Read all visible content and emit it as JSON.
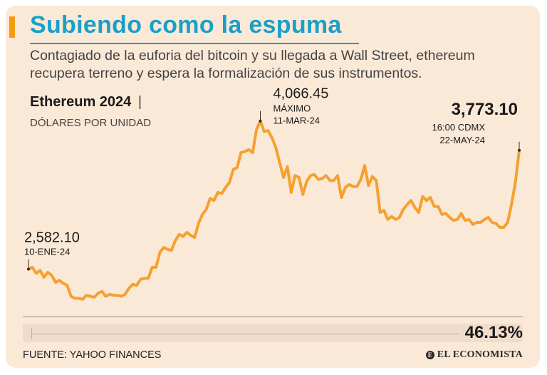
{
  "header": {
    "title": "Subiendo como la espuma",
    "subtitle": "Contagiado de la euforia del bitcoin y su llegada a Wall Street, ethereum recupera terreno y espera la formalización de sus instrumentos."
  },
  "series_label": {
    "name": "Ethereum 2024",
    "separator": "|",
    "units": "DÓLARES POR UNIDAD"
  },
  "annotations": {
    "start": {
      "value": "2,582.10",
      "date": "10-ENE-24"
    },
    "max": {
      "value": "4,066.45",
      "label": "MÁXIMO",
      "date": "11-MAR-24"
    },
    "last": {
      "value": "3,773.10",
      "time": "16:00 CDMX",
      "date": "22-MAY-24"
    }
  },
  "change": {
    "value": "46.13%"
  },
  "footer": {
    "source": "FUENTE: YAHOO FINANCES",
    "brand": "EL ECONOMISTA",
    "brand_icon": "E"
  },
  "colors": {
    "line": "#f5a031",
    "title": "#1aa0c8",
    "background": "#fbe9d7",
    "accent": "#f39c12"
  },
  "chart_data": {
    "type": "line",
    "title": "Ethereum 2024",
    "ylabel": "DÓLARES POR UNIDAD",
    "xlabel": "",
    "ylim": [
      2150,
      4150
    ],
    "x_range": [
      "10-ENE-24",
      "22-MAY-24"
    ],
    "grid": false,
    "series": [
      {
        "name": "Ethereum",
        "values": [
          2582.1,
          2600,
          2540,
          2570,
          2500,
          2550,
          2520,
          2450,
          2470,
          2440,
          2420,
          2310,
          2290,
          2290,
          2280,
          2320,
          2310,
          2300,
          2340,
          2360,
          2310,
          2330,
          2320,
          2320,
          2310,
          2330,
          2390,
          2430,
          2420,
          2480,
          2490,
          2490,
          2600,
          2600,
          2750,
          2800,
          2780,
          2770,
          2870,
          2930,
          2910,
          2950,
          2920,
          2900,
          3040,
          3130,
          3180,
          3290,
          3270,
          3350,
          3340,
          3400,
          3450,
          3580,
          3600,
          3750,
          3760,
          3780,
          3750,
          3980,
          4066.45,
          3960,
          3970,
          3900,
          3800,
          3650,
          3500,
          3610,
          3350,
          3520,
          3500,
          3330,
          3460,
          3520,
          3530,
          3480,
          3490,
          3520,
          3470,
          3470,
          3520,
          3300,
          3400,
          3430,
          3410,
          3410,
          3480,
          3620,
          3420,
          3510,
          3470,
          3150,
          3170,
          3080,
          3110,
          3080,
          3100,
          3180,
          3230,
          3270,
          3200,
          3150,
          3310,
          3270,
          3300,
          3210,
          3210,
          3130,
          3140,
          3100,
          3070,
          3080,
          3140,
          3070,
          3080,
          3030,
          3050,
          3050,
          3080,
          3100,
          3050,
          3040,
          3000,
          3000,
          3050,
          3230,
          3450,
          3773.1
        ]
      }
    ]
  }
}
